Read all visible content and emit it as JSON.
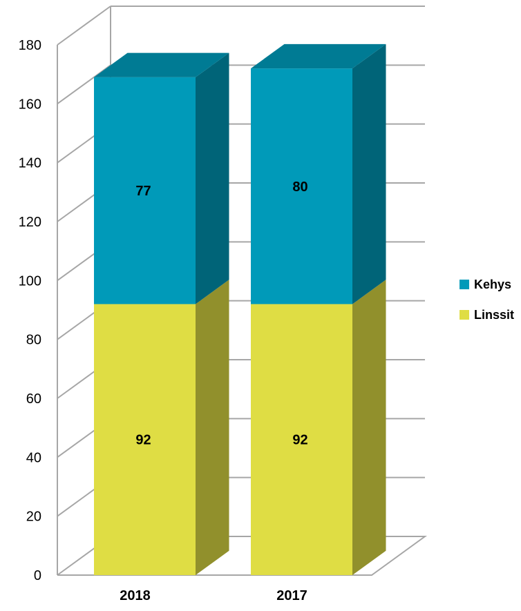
{
  "chart_data": {
    "type": "bar",
    "stacked": true,
    "three_d": true,
    "categories": [
      "2018",
      "2017"
    ],
    "series": [
      {
        "name": "Linssit",
        "values": [
          92,
          92
        ],
        "color": "#dfdd44"
      },
      {
        "name": "Kehys",
        "values": [
          77,
          80
        ],
        "color": "#009ab9"
      }
    ],
    "ylim": [
      0,
      180
    ],
    "yticks": [
      0,
      20,
      40,
      60,
      80,
      100,
      120,
      140,
      160,
      180
    ],
    "grid": true,
    "legend": "right",
    "title": "",
    "xlabel": "",
    "ylabel": ""
  }
}
